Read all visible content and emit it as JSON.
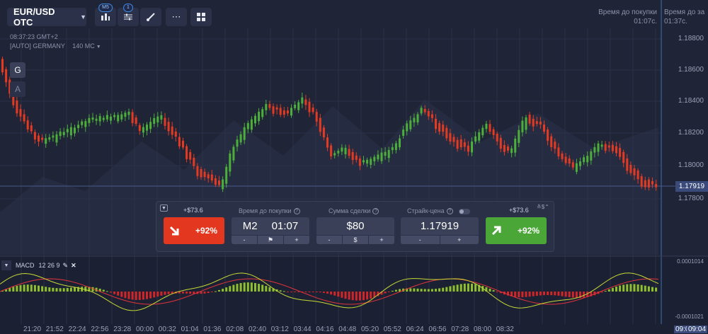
{
  "toolbar": {
    "asset": "EUR/USD OTC",
    "chart_type_badge": "M5",
    "indicators_badge": "1"
  },
  "meta": {
    "time": "08:37:23 GMT+2",
    "region": "[AUTO] GERMANY",
    "ping": "140 MC"
  },
  "side_buttons": {
    "g": "G",
    "a": "A"
  },
  "timers": [
    {
      "label": "Время до покупки",
      "value": "01:07c."
    },
    {
      "label": "Время до за",
      "value": "01:37c."
    }
  ],
  "price_axis": {
    "ticks": [
      "1.18800",
      "1.18600",
      "1.18400",
      "1.18200",
      "1.18000",
      "1.17800"
    ],
    "current": "1.17919"
  },
  "macd_axis": {
    "top": "0.0001014",
    "bottom": "-0.0001021"
  },
  "time_axis": [
    "21:20",
    "21:52",
    "22:24",
    "22:56",
    "23:28",
    "00:00",
    "00:32",
    "01:04",
    "01:36",
    "02:08",
    "02:40",
    "03:12",
    "03:44",
    "04:16",
    "04:48",
    "05:20",
    "05:52",
    "06:24",
    "06:56",
    "07:28",
    "08:00",
    "08:32",
    "09:0",
    "09:04"
  ],
  "panel": {
    "down_payout": "+$73.6",
    "up_payout": "+$73.6",
    "down_pct": "+92%",
    "up_pct": "+92%",
    "time_label": "Время до покупки",
    "time_frame": "M2",
    "time_value": "01:07",
    "amount_label": "Сумма сделки",
    "amount_value": "$80",
    "amount_currency": "$",
    "strike_label": "Страйк-цена",
    "strike_value": "1.17919",
    "minus": "-",
    "plus": "+"
  },
  "macd": {
    "label": "MACD",
    "params": "12 26 9"
  },
  "colors": {
    "bg": "#1f2437",
    "up_candle": "#4caf3a",
    "down_candle": "#e53a22",
    "macd_line": "#c6d936",
    "signal_line": "#e3343c",
    "put": "#e4371f",
    "call": "#4aa637"
  }
}
